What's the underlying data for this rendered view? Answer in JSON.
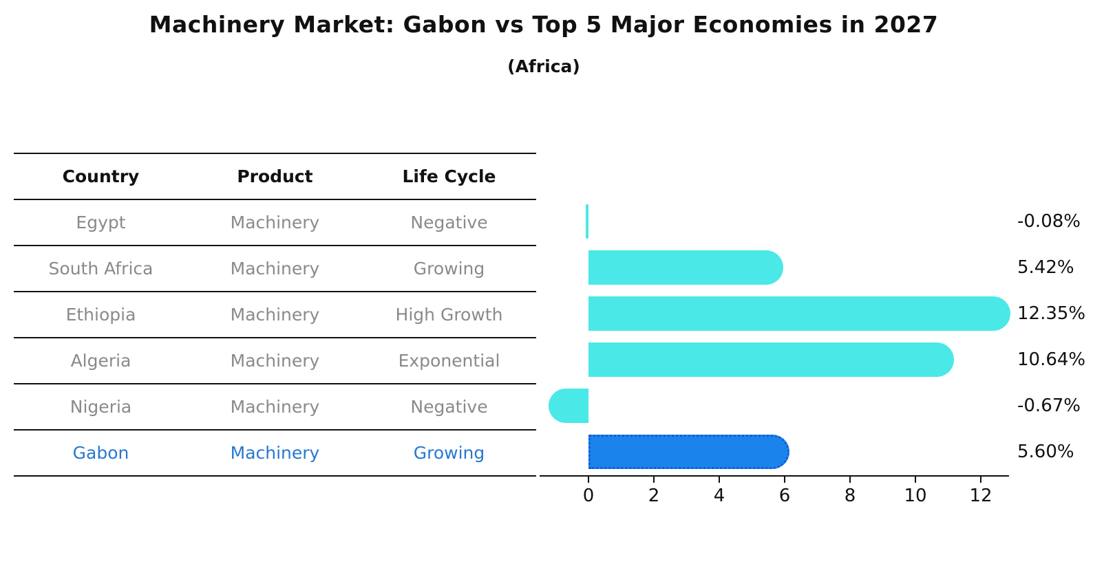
{
  "header": {
    "title": "Machinery Market: Gabon vs Top 5 Major Economies in 2027",
    "subtitle": "(Africa)"
  },
  "table": {
    "columns": [
      "Country",
      "Product",
      "Life Cycle"
    ],
    "rows": [
      {
        "country": "Egypt",
        "product": "Machinery",
        "life_cycle": "Negative",
        "highlight": false
      },
      {
        "country": "South Africa",
        "product": "Machinery",
        "life_cycle": "Growing",
        "highlight": false
      },
      {
        "country": "Ethiopia",
        "product": "Machinery",
        "life_cycle": "High Growth",
        "highlight": false
      },
      {
        "country": "Algeria",
        "product": "Machinery",
        "life_cycle": "Exponential",
        "highlight": false
      },
      {
        "country": "Nigeria",
        "product": "Machinery",
        "life_cycle": "Negative",
        "highlight": false
      },
      {
        "country": "Gabon",
        "product": "Machinery",
        "life_cycle": "Growing",
        "highlight": true
      }
    ]
  },
  "chart_data": {
    "type": "bar",
    "orientation": "horizontal",
    "title": "Machinery Market: Gabon vs Top 5 Major Economies in 2027",
    "subtitle": "(Africa)",
    "categories": [
      "Egypt",
      "South Africa",
      "Ethiopia",
      "Algeria",
      "Nigeria",
      "Gabon"
    ],
    "values": [
      -0.08,
      5.42,
      12.35,
      10.64,
      -0.67,
      5.6
    ],
    "value_labels": [
      "-0.08%",
      "5.42%",
      "12.35%",
      "10.64%",
      "-0.67%",
      "5.60%"
    ],
    "x_ticks": [
      0,
      2,
      4,
      6,
      8,
      10,
      12
    ],
    "x_tick_labels": [
      "0",
      "2",
      "4",
      "6",
      "8",
      "10",
      "12"
    ],
    "xlim": [
      -1.5,
      12.9
    ],
    "xlabel": "",
    "ylabel": "",
    "unit": "%",
    "grid": false,
    "legend": false,
    "highlight_index": 5,
    "highlight_style": "dotted-border"
  },
  "colors": {
    "default_bar": "#4ae8e6",
    "highlight_bar": "#1b83ec",
    "highlight_border": "#0f5fd0",
    "highlight_text": "#2878d0",
    "table_text": "#8a8a8a",
    "axis": "#111111"
  }
}
